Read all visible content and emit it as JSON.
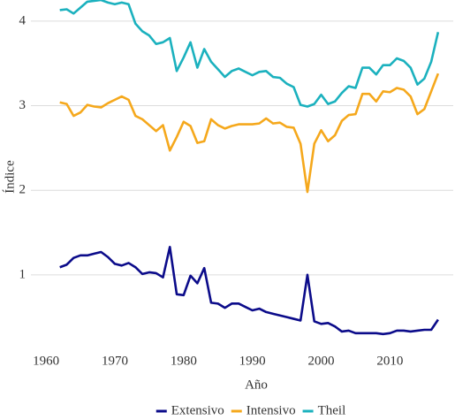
{
  "chart_data": {
    "type": "line",
    "x_label": "Año",
    "y_label": "Índice",
    "x": [
      1962,
      1963,
      1964,
      1965,
      1966,
      1967,
      1968,
      1969,
      1970,
      1971,
      1972,
      1973,
      1974,
      1975,
      1976,
      1977,
      1978,
      1979,
      1980,
      1981,
      1982,
      1983,
      1984,
      1985,
      1986,
      1987,
      1988,
      1989,
      1990,
      1991,
      1992,
      1993,
      1994,
      1995,
      1996,
      1997,
      1998,
      1999,
      2000,
      2001,
      2002,
      2003,
      2004,
      2005,
      2006,
      2007,
      2008,
      2009,
      2010,
      2011,
      2012,
      2013,
      2014,
      2015,
      2016,
      2017
    ],
    "series": [
      {
        "name": "Extensivo",
        "color": "#0b0b8a",
        "values": [
          1.09,
          1.12,
          1.2,
          1.23,
          1.23,
          1.25,
          1.27,
          1.21,
          1.13,
          1.11,
          1.14,
          1.09,
          1.01,
          1.03,
          1.02,
          0.97,
          1.33,
          0.77,
          0.76,
          0.99,
          0.9,
          1.08,
          0.67,
          0.66,
          0.61,
          0.66,
          0.66,
          0.62,
          0.58,
          0.6,
          0.56,
          0.54,
          0.52,
          0.5,
          0.48,
          0.46,
          1.0,
          0.45,
          0.42,
          0.43,
          0.39,
          0.33,
          0.34,
          0.31,
          0.31,
          0.31,
          0.31,
          0.3,
          0.31,
          0.34,
          0.34,
          0.33,
          0.34,
          0.35,
          0.35,
          0.47
        ]
      },
      {
        "name": "Intensivo",
        "color": "#f5a81c",
        "values": [
          3.04,
          3.02,
          2.88,
          2.92,
          3.01,
          2.99,
          2.98,
          3.03,
          3.07,
          3.11,
          3.07,
          2.88,
          2.84,
          2.77,
          2.7,
          2.77,
          2.47,
          2.63,
          2.81,
          2.76,
          2.56,
          2.58,
          2.84,
          2.77,
          2.73,
          2.76,
          2.78,
          2.78,
          2.78,
          2.79,
          2.85,
          2.79,
          2.8,
          2.75,
          2.74,
          2.55,
          1.98,
          2.55,
          2.71,
          2.58,
          2.65,
          2.82,
          2.89,
          2.9,
          3.14,
          3.14,
          3.05,
          3.17,
          3.16,
          3.21,
          3.19,
          3.11,
          2.9,
          2.96,
          3.17,
          3.38
        ]
      },
      {
        "name": "Theil",
        "color": "#1bb1be",
        "values": [
          4.13,
          4.14,
          4.09,
          4.16,
          4.23,
          4.24,
          4.25,
          4.22,
          4.2,
          4.22,
          4.2,
          3.97,
          3.88,
          3.83,
          3.73,
          3.75,
          3.8,
          3.41,
          3.57,
          3.75,
          3.45,
          3.67,
          3.52,
          3.43,
          3.34,
          3.41,
          3.44,
          3.4,
          3.36,
          3.4,
          3.41,
          3.34,
          3.33,
          3.26,
          3.22,
          3.01,
          2.99,
          3.02,
          3.13,
          3.02,
          3.05,
          3.15,
          3.23,
          3.21,
          3.45,
          3.45,
          3.37,
          3.48,
          3.48,
          3.56,
          3.53,
          3.45,
          3.25,
          3.32,
          3.52,
          3.87
        ]
      }
    ],
    "xlim": [
      1957.8,
      2019.2
    ],
    "ylim": [
      0.12,
      4.25
    ],
    "xticks": [
      1960,
      1970,
      1980,
      1990,
      2000,
      2010
    ],
    "yticks": [
      1,
      2,
      3,
      4
    ],
    "grid": true,
    "legend": "bottom"
  }
}
